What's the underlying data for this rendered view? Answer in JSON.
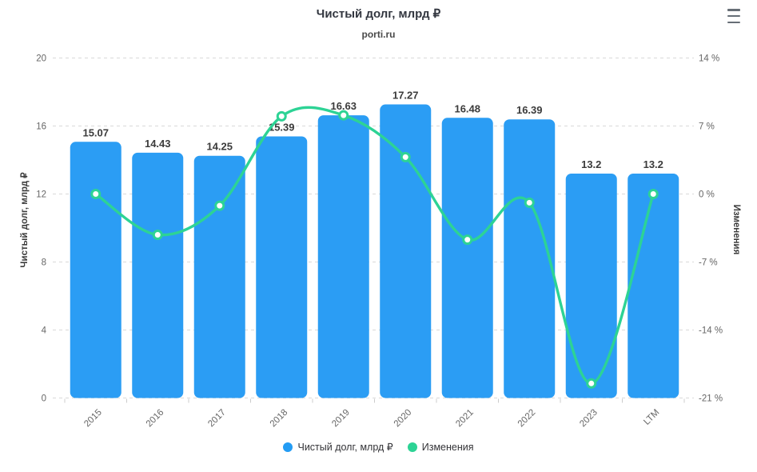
{
  "header": {
    "title": "Чистый долг, млрд ₽",
    "subtitle": "porti.ru"
  },
  "toolbar": {
    "context_menu_icon": "hamburger-icon"
  },
  "axes": {
    "left": {
      "title": "Чистый долг, млрд ₽",
      "tick_labels": [
        "20",
        "16",
        "12",
        "8",
        "4",
        "0"
      ],
      "tick_values": [
        20,
        16,
        12,
        8,
        4,
        0
      ]
    },
    "right": {
      "title": "Изменения",
      "tick_labels": [
        "14 %",
        "7 %",
        "0 %",
        "-7 %",
        "-14 %",
        "-21 %"
      ],
      "tick_values": [
        14,
        7,
        0,
        -7,
        -14,
        -21
      ]
    },
    "x": {
      "categories": [
        "2015",
        "2016",
        "2017",
        "2018",
        "2019",
        "2020",
        "2021",
        "2022",
        "2023",
        "LTM"
      ]
    }
  },
  "legend": {
    "items": [
      {
        "label": "Чистый долг, млрд ₽",
        "color": "#239CF4",
        "marker": "circle"
      },
      {
        "label": "Изменения",
        "color": "#2DD395",
        "marker": "circle"
      }
    ]
  },
  "colors": {
    "bar": "#2B9DF4",
    "line": "#2DD395",
    "grid": "#DADADA",
    "axis_label": "#666666",
    "x_tick": "#CCCCCC",
    "data_label": "#3B3B3B",
    "title": "#333740"
  },
  "chart_data": {
    "type": "bar",
    "title": "Чистый долг, млрд ₽",
    "subtitle": "porti.ru",
    "categories": [
      "2015",
      "2016",
      "2017",
      "2018",
      "2019",
      "2020",
      "2021",
      "2022",
      "2023",
      "LTM"
    ],
    "series": [
      {
        "name": "Чистый долг, млрд ₽",
        "type": "bar",
        "yaxis": "left",
        "values": [
          15.07,
          14.43,
          14.25,
          15.39,
          16.63,
          17.27,
          16.48,
          16.39,
          13.2,
          13.2
        ],
        "data_labels": [
          "15.07",
          "14.43",
          "14.25",
          "15.39",
          "16.63",
          "17.27",
          "16.48",
          "16.39",
          "13.2",
          "13.2"
        ]
      },
      {
        "name": "Изменения",
        "type": "line",
        "yaxis": "right",
        "values_percent": [
          0,
          -4.2,
          -1.2,
          8.0,
          8.1,
          3.8,
          -4.7,
          -0.9,
          -19.5,
          0
        ]
      }
    ],
    "ylabel_left": "Чистый долг, млрд ₽",
    "ylabel_right": "Изменения",
    "ylim_left": [
      0,
      20
    ],
    "ylim_right": [
      -21,
      14
    ],
    "grid": "horizontal-dashed",
    "legend_position": "bottom-center"
  }
}
